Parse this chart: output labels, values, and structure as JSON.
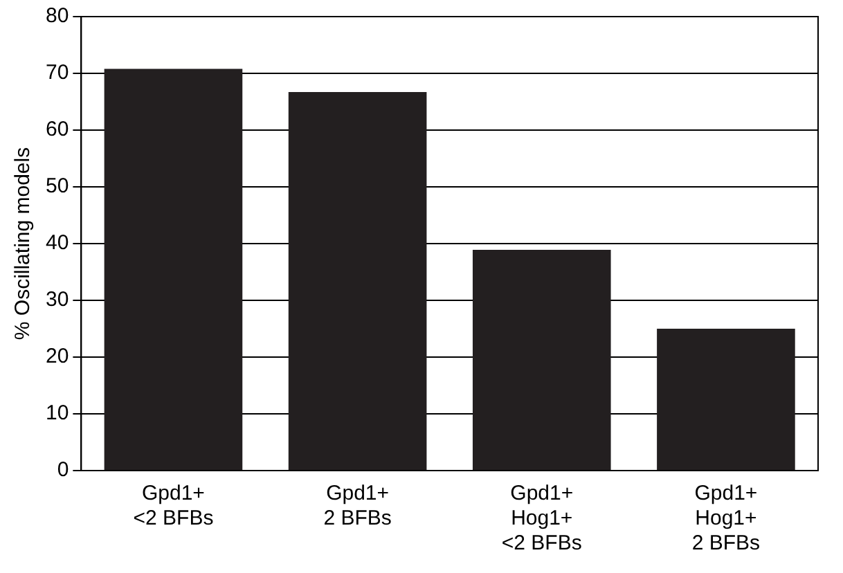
{
  "chart_data": {
    "type": "bar",
    "ylabel": "% Oscillating models",
    "categories": [
      "Gpd1+\n<2 BFBs",
      "Gpd1+\n2 BFBs",
      "Gpd1+\nHog1+\n<2 BFBs",
      "Gpd1+\nHog1+\n2 BFBs"
    ],
    "values": [
      70.8,
      66.7,
      38.9,
      25
    ],
    "color": "#231f20",
    "ylim": [
      0,
      80
    ],
    "yticks": [
      0,
      10,
      20,
      30,
      40,
      50,
      60,
      70,
      80
    ],
    "grid": "y"
  }
}
